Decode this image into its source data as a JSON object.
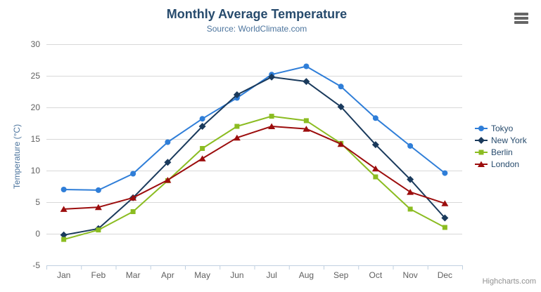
{
  "credits": "Highcharts.com",
  "icons": {
    "export_menu": "hamburger-icon"
  },
  "style": {
    "title_color": "#274b6d",
    "subtitle_color": "#4d759e",
    "axis_title_color": "#4d759e",
    "axis_label_color": "#606060",
    "legend_text_color": "#274b6d",
    "grid_color": "#d8d8d8",
    "axis_line_color": "#c0d0e0",
    "credits_color": "#909090",
    "menu_icon_color": "#666666"
  },
  "chart_data": {
    "type": "line",
    "title": "Monthly Average Temperature",
    "subtitle": "Source: WorldClimate.com",
    "xlabel": "",
    "ylabel": "Temperature (°C)",
    "categories": [
      "Jan",
      "Feb",
      "Mar",
      "Apr",
      "May",
      "Jun",
      "Jul",
      "Aug",
      "Sep",
      "Oct",
      "Nov",
      "Dec"
    ],
    "ylim": [
      -5,
      30
    ],
    "ytick_step": 5,
    "grid": "horizontal",
    "legend_position": "right",
    "series": [
      {
        "name": "Tokyo",
        "color": "#2f7ed8",
        "marker": "circle",
        "values": [
          7.0,
          6.9,
          9.5,
          14.5,
          18.2,
          21.5,
          25.2,
          26.5,
          23.3,
          18.3,
          13.9,
          9.6
        ]
      },
      {
        "name": "New York",
        "color": "#1a3a5c",
        "marker": "diamond",
        "values": [
          -0.2,
          0.8,
          5.7,
          11.3,
          17.0,
          22.0,
          24.8,
          24.1,
          20.1,
          14.1,
          8.6,
          2.5
        ]
      },
      {
        "name": "Berlin",
        "color": "#8bbc21",
        "marker": "square",
        "values": [
          -0.9,
          0.6,
          3.5,
          8.4,
          13.5,
          17.0,
          18.6,
          17.9,
          14.3,
          9.0,
          3.9,
          1.0
        ]
      },
      {
        "name": "London",
        "color": "#9c0d0d",
        "marker": "triangle",
        "values": [
          3.9,
          4.2,
          5.7,
          8.5,
          11.9,
          15.2,
          17.0,
          16.6,
          14.2,
          10.3,
          6.6,
          4.8
        ]
      }
    ]
  }
}
